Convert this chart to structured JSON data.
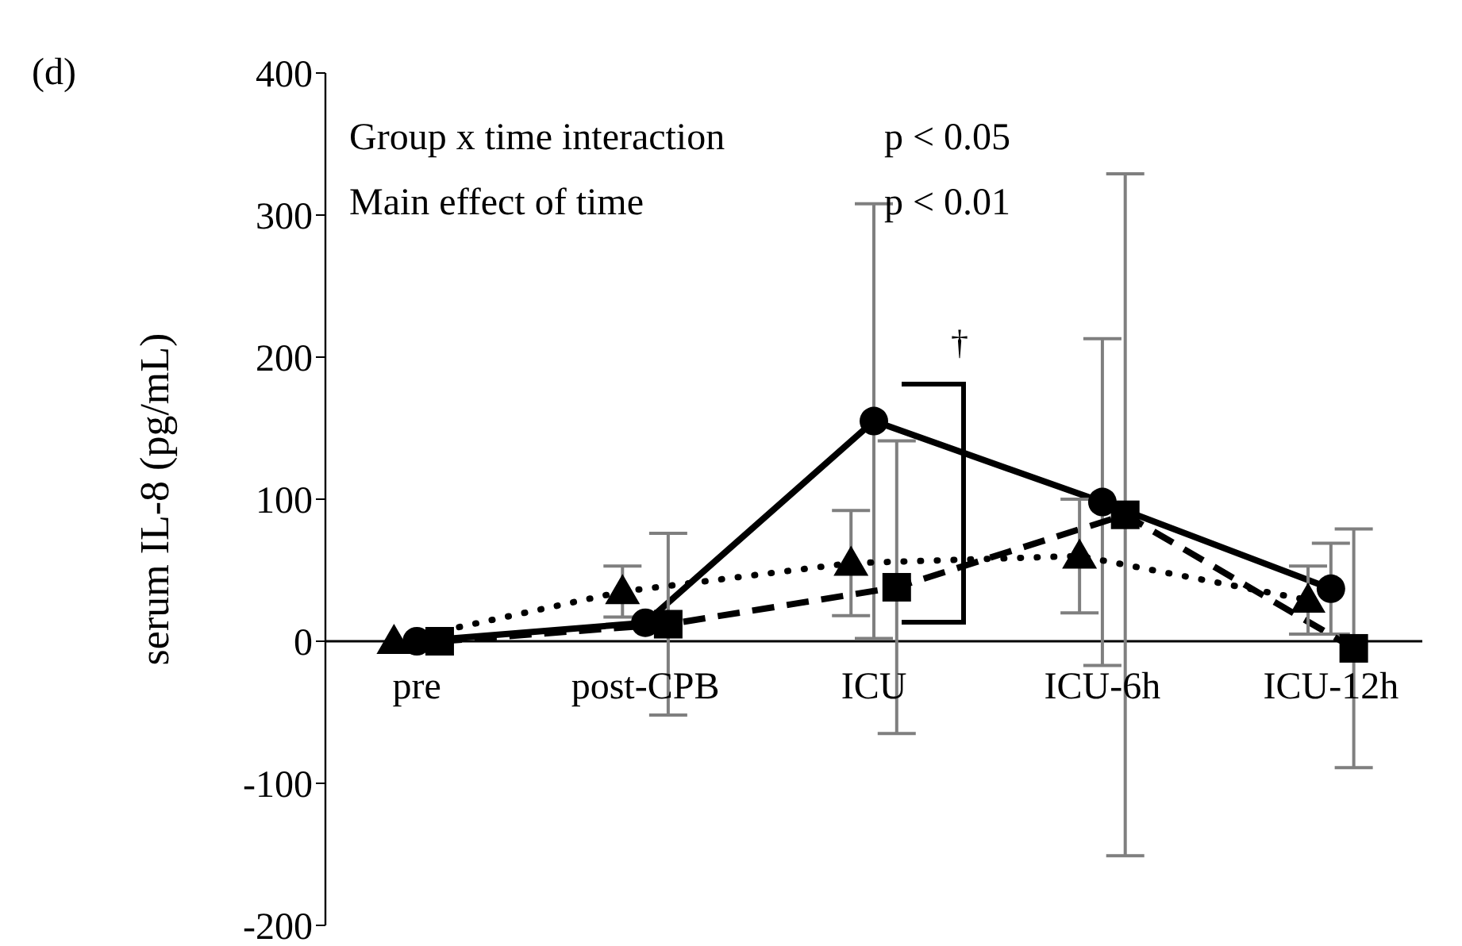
{
  "chart_data": {
    "type": "line",
    "ylabel": "serum IL-8 (pg/mL)",
    "categories": [
      "pre",
      "post-CPB",
      "ICU",
      "ICU-6h",
      "ICU-12h"
    ],
    "series": [
      {
        "color": "#000000",
        "marker": "circle",
        "line_style": "solid",
        "values": [
          0,
          13,
          155,
          98,
          37
        ],
        "errors": [
          null,
          null,
          153,
          115,
          32
        ]
      },
      {
        "color": "#000000",
        "marker": "square",
        "line_style": "dashed",
        "values": [
          0,
          12,
          38,
          89,
          -5
        ],
        "errors": [
          null,
          64,
          103,
          240,
          84
        ]
      },
      {
        "color": "#000000",
        "marker": "triangle",
        "line_style": "dotted",
        "values": [
          0,
          35,
          55,
          60,
          29
        ],
        "errors": [
          null,
          18,
          37,
          40,
          24
        ]
      }
    ],
    "ylim": [
      -200,
      400
    ],
    "yticks": [
      -200,
      -100,
      0,
      100,
      200,
      300,
      400
    ],
    "annotations": [
      "(d)",
      "Group x time interaction",
      "p < 0.05",
      "Main effect of time",
      "p < 0.01",
      "†"
    ]
  }
}
